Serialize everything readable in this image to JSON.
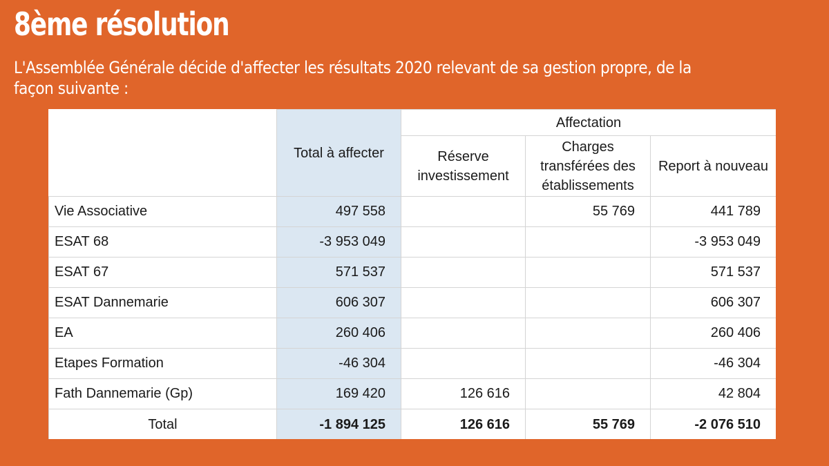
{
  "slide": {
    "title": "8ème résolution",
    "subtitle": "L'Assemblée Générale décide d'affecter les résultats 2020 relevant de sa gestion propre, de la façon suivante :"
  },
  "table": {
    "group_header": "Affectation",
    "total_header": "Total à affecter",
    "columns": [
      "Réserve investissement",
      "Charges transférées des établissements",
      "Report à nouveau"
    ],
    "rows": [
      {
        "label": "Vie Associative",
        "total": "497 558",
        "reserve": "",
        "charges": "55 769",
        "report": "441 789"
      },
      {
        "label": "ESAT 68",
        "total": "-3 953 049",
        "reserve": "",
        "charges": "",
        "report": "-3 953 049"
      },
      {
        "label": "ESAT 67",
        "total": "571 537",
        "reserve": "",
        "charges": "",
        "report": "571 537"
      },
      {
        "label": "ESAT Dannemarie",
        "total": "606 307",
        "reserve": "",
        "charges": "",
        "report": "606 307"
      },
      {
        "label": "EA",
        "total": "260 406",
        "reserve": "",
        "charges": "",
        "report": "260 406"
      },
      {
        "label": "Etapes Formation",
        "total": "-46 304",
        "reserve": "",
        "charges": "",
        "report": "-46 304"
      },
      {
        "label": "Fath Dannemarie (Gp)",
        "total": "169 420",
        "reserve": "126 616",
        "charges": "",
        "report": "42 804"
      }
    ],
    "total_row": {
      "label": "Total",
      "total": "-1 894 125",
      "reserve": "126 616",
      "charges": "55 769",
      "report": "-2 076 510"
    }
  },
  "colors": {
    "background": "#e0652a",
    "shaded_column": "#dbe7f2"
  }
}
